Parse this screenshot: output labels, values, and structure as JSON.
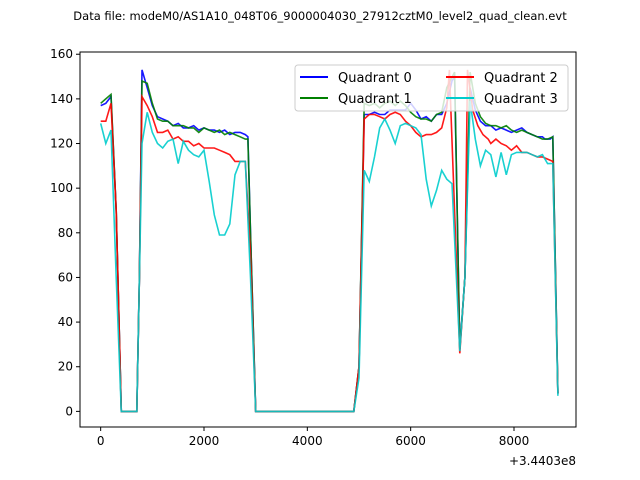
{
  "chart_data": {
    "type": "line",
    "title": "Data file: modeM0/AS1A10_048T06_9000004030_27912cztM0_level2_quad_clean.evt",
    "xlabel": "",
    "ylabel": "",
    "x_offset_label": "+3.4403e8",
    "xlim": [
      -400,
      9200
    ],
    "ylim": [
      -7,
      161
    ],
    "xticks": [
      0,
      2000,
      4000,
      6000,
      8000
    ],
    "xtick_labels": [
      "0",
      "2000",
      "4000",
      "6000",
      "8000"
    ],
    "yticks": [
      0,
      20,
      40,
      60,
      80,
      100,
      120,
      140,
      160
    ],
    "ytick_labels": [
      "0",
      "20",
      "40",
      "60",
      "80",
      "100",
      "120",
      "140",
      "160"
    ],
    "legend_position": "top-right",
    "legend_columns": 2,
    "series": [
      {
        "name": "Quadrant 0",
        "color": "#0000ff",
        "points": [
          [
            0,
            137
          ],
          [
            100,
            138
          ],
          [
            200,
            141
          ],
          [
            300,
            90
          ],
          [
            400,
            0
          ],
          [
            700,
            0
          ],
          [
            750,
            60
          ],
          [
            800,
            153
          ],
          [
            900,
            145
          ],
          [
            1000,
            137
          ],
          [
            1100,
            132
          ],
          [
            1200,
            131
          ],
          [
            1300,
            130
          ],
          [
            1400,
            128
          ],
          [
            1500,
            129
          ],
          [
            1600,
            127
          ],
          [
            1700,
            127
          ],
          [
            1800,
            128
          ],
          [
            1900,
            126
          ],
          [
            2000,
            127
          ],
          [
            2100,
            126
          ],
          [
            2200,
            126
          ],
          [
            2300,
            125
          ],
          [
            2400,
            126
          ],
          [
            2500,
            124
          ],
          [
            2600,
            125
          ],
          [
            2700,
            125
          ],
          [
            2800,
            124
          ],
          [
            2850,
            123
          ],
          [
            2900,
            80
          ],
          [
            3000,
            0
          ],
          [
            4900,
            0
          ],
          [
            5000,
            20
          ],
          [
            5100,
            133
          ],
          [
            5200,
            133
          ],
          [
            5300,
            134
          ],
          [
            5400,
            133
          ],
          [
            5500,
            133
          ],
          [
            5600,
            135
          ],
          [
            5700,
            135
          ],
          [
            5800,
            135
          ],
          [
            5900,
            135
          ],
          [
            6000,
            138
          ],
          [
            6100,
            135
          ],
          [
            6200,
            131
          ],
          [
            6300,
            132
          ],
          [
            6400,
            130
          ],
          [
            6500,
            133
          ],
          [
            6600,
            133
          ],
          [
            6700,
            138
          ],
          [
            6800,
            148
          ],
          [
            6850,
            150
          ],
          [
            6950,
            28
          ],
          [
            7050,
            60
          ],
          [
            7150,
            145
          ],
          [
            7250,
            135
          ],
          [
            7350,
            130
          ],
          [
            7450,
            128
          ],
          [
            7550,
            128
          ],
          [
            7650,
            126
          ],
          [
            7750,
            127
          ],
          [
            7850,
            126
          ],
          [
            7950,
            125
          ],
          [
            8050,
            126
          ],
          [
            8150,
            127
          ],
          [
            8250,
            125
          ],
          [
            8350,
            124
          ],
          [
            8450,
            123
          ],
          [
            8550,
            123
          ],
          [
            8600,
            122
          ],
          [
            8700,
            122
          ],
          [
            8750,
            123
          ],
          [
            8850,
            8
          ]
        ]
      },
      {
        "name": "Quadrant 1",
        "color": "#008000",
        "points": [
          [
            0,
            138
          ],
          [
            100,
            140
          ],
          [
            200,
            142
          ],
          [
            300,
            90
          ],
          [
            400,
            0
          ],
          [
            700,
            0
          ],
          [
            750,
            60
          ],
          [
            800,
            148
          ],
          [
            900,
            147
          ],
          [
            1000,
            138
          ],
          [
            1100,
            131
          ],
          [
            1200,
            130
          ],
          [
            1300,
            130
          ],
          [
            1400,
            128
          ],
          [
            1500,
            128
          ],
          [
            1600,
            128
          ],
          [
            1700,
            127
          ],
          [
            1800,
            127
          ],
          [
            1900,
            125
          ],
          [
            2000,
            127
          ],
          [
            2100,
            126
          ],
          [
            2200,
            125
          ],
          [
            2300,
            126
          ],
          [
            2400,
            124
          ],
          [
            2500,
            125
          ],
          [
            2600,
            124
          ],
          [
            2700,
            123
          ],
          [
            2800,
            122
          ],
          [
            2850,
            122
          ],
          [
            2900,
            80
          ],
          [
            3000,
            0
          ],
          [
            4900,
            0
          ],
          [
            5000,
            20
          ],
          [
            5100,
            138
          ],
          [
            5200,
            137
          ],
          [
            5300,
            138
          ],
          [
            5400,
            136
          ],
          [
            5500,
            138
          ],
          [
            5600,
            139
          ],
          [
            5700,
            137
          ],
          [
            5800,
            139
          ],
          [
            5900,
            137
          ],
          [
            6000,
            134
          ],
          [
            6100,
            132
          ],
          [
            6200,
            131
          ],
          [
            6300,
            131
          ],
          [
            6400,
            130
          ],
          [
            6500,
            133
          ],
          [
            6600,
            134
          ],
          [
            6700,
            145
          ],
          [
            6850,
            152
          ],
          [
            6950,
            28
          ],
          [
            7050,
            60
          ],
          [
            7150,
            152
          ],
          [
            7250,
            138
          ],
          [
            7350,
            132
          ],
          [
            7450,
            129
          ],
          [
            7550,
            128
          ],
          [
            7650,
            128
          ],
          [
            7750,
            127
          ],
          [
            7850,
            128
          ],
          [
            7950,
            126
          ],
          [
            8050,
            125
          ],
          [
            8150,
            126
          ],
          [
            8250,
            125
          ],
          [
            8350,
            124
          ],
          [
            8450,
            123
          ],
          [
            8550,
            122
          ],
          [
            8650,
            122
          ],
          [
            8750,
            123
          ],
          [
            8850,
            8
          ]
        ]
      },
      {
        "name": "Quadrant 2",
        "color": "#ff0000",
        "points": [
          [
            0,
            130
          ],
          [
            100,
            130
          ],
          [
            200,
            138
          ],
          [
            300,
            90
          ],
          [
            400,
            0
          ],
          [
            700,
            0
          ],
          [
            750,
            60
          ],
          [
            800,
            141
          ],
          [
            900,
            137
          ],
          [
            1000,
            132
          ],
          [
            1100,
            125
          ],
          [
            1200,
            125
          ],
          [
            1300,
            126
          ],
          [
            1400,
            122
          ],
          [
            1500,
            123
          ],
          [
            1600,
            121
          ],
          [
            1700,
            121
          ],
          [
            1800,
            119
          ],
          [
            1900,
            120
          ],
          [
            2000,
            118
          ],
          [
            2100,
            118
          ],
          [
            2200,
            118
          ],
          [
            2300,
            117
          ],
          [
            2400,
            116
          ],
          [
            2500,
            115
          ],
          [
            2600,
            112
          ],
          [
            2700,
            112
          ],
          [
            2800,
            112
          ],
          [
            2900,
            70
          ],
          [
            3000,
            0
          ],
          [
            4900,
            0
          ],
          [
            5000,
            20
          ],
          [
            5100,
            131
          ],
          [
            5200,
            133
          ],
          [
            5300,
            133
          ],
          [
            5400,
            132
          ],
          [
            5500,
            131
          ],
          [
            5600,
            133
          ],
          [
            5700,
            134
          ],
          [
            5800,
            133
          ],
          [
            5900,
            130
          ],
          [
            6000,
            128
          ],
          [
            6100,
            125
          ],
          [
            6200,
            123
          ],
          [
            6300,
            124
          ],
          [
            6400,
            124
          ],
          [
            6500,
            125
          ],
          [
            6600,
            127
          ],
          [
            6700,
            136
          ],
          [
            6750,
            153
          ],
          [
            6950,
            26
          ],
          [
            7050,
            60
          ],
          [
            7100,
            153
          ],
          [
            7200,
            135
          ],
          [
            7300,
            128
          ],
          [
            7400,
            124
          ],
          [
            7500,
            122
          ],
          [
            7550,
            120
          ],
          [
            7650,
            122
          ],
          [
            7750,
            120
          ],
          [
            7850,
            119
          ],
          [
            7950,
            117
          ],
          [
            8050,
            119
          ],
          [
            8150,
            116
          ],
          [
            8250,
            116
          ],
          [
            8350,
            115
          ],
          [
            8450,
            114
          ],
          [
            8550,
            114
          ],
          [
            8650,
            113
          ],
          [
            8750,
            112
          ],
          [
            8850,
            8
          ]
        ]
      },
      {
        "name": "Quadrant 3",
        "color": "#00cccc",
        "points": [
          [
            0,
            129
          ],
          [
            100,
            120
          ],
          [
            200,
            126
          ],
          [
            300,
            60
          ],
          [
            400,
            0
          ],
          [
            700,
            0
          ],
          [
            800,
            120
          ],
          [
            900,
            134
          ],
          [
            1000,
            125
          ],
          [
            1100,
            120
          ],
          [
            1200,
            118
          ],
          [
            1300,
            121
          ],
          [
            1400,
            122
          ],
          [
            1500,
            111
          ],
          [
            1600,
            121
          ],
          [
            1700,
            117
          ],
          [
            1800,
            115
          ],
          [
            1900,
            114
          ],
          [
            2000,
            117
          ],
          [
            2100,
            103
          ],
          [
            2200,
            88
          ],
          [
            2300,
            79
          ],
          [
            2400,
            79
          ],
          [
            2500,
            84
          ],
          [
            2600,
            106
          ],
          [
            2700,
            112
          ],
          [
            2800,
            112
          ],
          [
            2900,
            60
          ],
          [
            3000,
            0
          ],
          [
            4900,
            0
          ],
          [
            5000,
            15
          ],
          [
            5100,
            108
          ],
          [
            5200,
            103
          ],
          [
            5300,
            114
          ],
          [
            5400,
            127
          ],
          [
            5500,
            131
          ],
          [
            5600,
            126
          ],
          [
            5700,
            120
          ],
          [
            5800,
            128
          ],
          [
            5900,
            129
          ],
          [
            6000,
            128
          ],
          [
            6100,
            127
          ],
          [
            6200,
            124
          ],
          [
            6300,
            104
          ],
          [
            6400,
            92
          ],
          [
            6500,
            99
          ],
          [
            6600,
            108
          ],
          [
            6700,
            104
          ],
          [
            6800,
            102
          ],
          [
            6950,
            27
          ],
          [
            7050,
            60
          ],
          [
            7150,
            139
          ],
          [
            7250,
            122
          ],
          [
            7350,
            110
          ],
          [
            7450,
            117
          ],
          [
            7550,
            115
          ],
          [
            7650,
            105
          ],
          [
            7750,
            116
          ],
          [
            7850,
            106
          ],
          [
            7950,
            115
          ],
          [
            8050,
            116
          ],
          [
            8150,
            116
          ],
          [
            8250,
            116
          ],
          [
            8350,
            115
          ],
          [
            8450,
            114
          ],
          [
            8550,
            115
          ],
          [
            8650,
            111
          ],
          [
            8750,
            111
          ],
          [
            8850,
            7
          ]
        ]
      }
    ]
  }
}
